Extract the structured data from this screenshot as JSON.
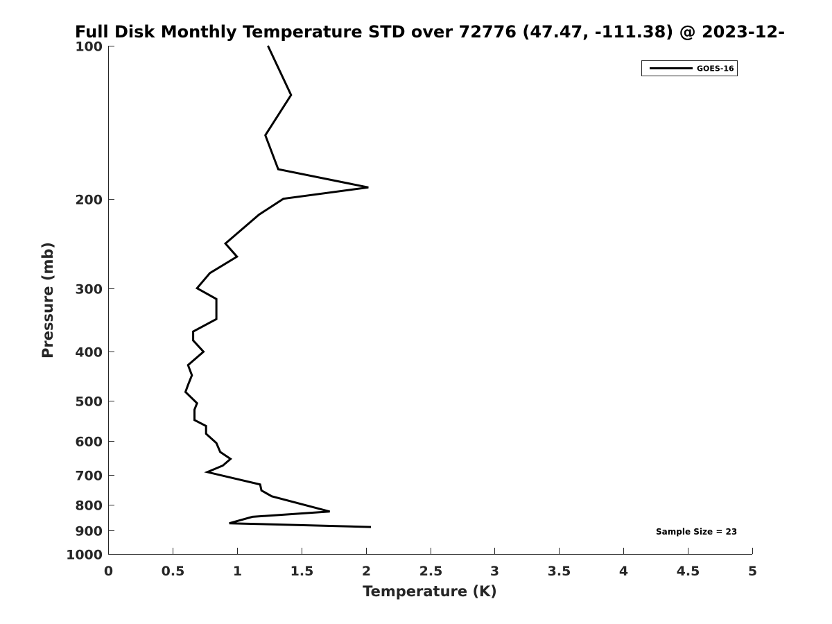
{
  "chart_data": {
    "type": "line",
    "title": "Full Disk Monthly Temperature STD over 72776 (47.47, -111.38) @ 2023-12-",
    "xlabel": "Temperature (K)",
    "ylabel": "Pressure (mb)",
    "xlim": [
      0,
      5
    ],
    "ylim": [
      100,
      1000
    ],
    "y_scale": "log",
    "y_reversed": true,
    "grid": false,
    "x_ticks": [
      0,
      0.5,
      1,
      1.5,
      2,
      2.5,
      3,
      3.5,
      4,
      4.5,
      5
    ],
    "x_tick_labels": [
      "0",
      "0.5",
      "1",
      "1.5",
      "2",
      "2.5",
      "3",
      "3.5",
      "4",
      "4.5",
      "5"
    ],
    "y_ticks": [
      100,
      200,
      300,
      400,
      500,
      600,
      700,
      800,
      900,
      1000
    ],
    "y_tick_labels": [
      "100",
      "200",
      "300",
      "400",
      "500",
      "600",
      "700",
      "800",
      "900",
      "1000"
    ],
    "legend_position": "top-right",
    "annotation": "Sample Size = 23",
    "line_color": "#000000",
    "series": [
      {
        "name": "GOES-16",
        "points": [
          [
            1.24,
            100
          ],
          [
            1.42,
            125
          ],
          [
            1.22,
            150
          ],
          [
            1.32,
            175
          ],
          [
            2.02,
            190
          ],
          [
            1.36,
            200
          ],
          [
            1.17,
            215
          ],
          [
            0.91,
            245
          ],
          [
            1.0,
            260
          ],
          [
            0.79,
            280
          ],
          [
            0.69,
            300
          ],
          [
            0.84,
            315
          ],
          [
            0.84,
            345
          ],
          [
            0.66,
            365
          ],
          [
            0.66,
            380
          ],
          [
            0.74,
            400
          ],
          [
            0.62,
            425
          ],
          [
            0.65,
            445
          ],
          [
            0.62,
            465
          ],
          [
            0.6,
            480
          ],
          [
            0.69,
            505
          ],
          [
            0.67,
            520
          ],
          [
            0.67,
            545
          ],
          [
            0.76,
            560
          ],
          [
            0.76,
            580
          ],
          [
            0.84,
            605
          ],
          [
            0.87,
            630
          ],
          [
            0.95,
            650
          ],
          [
            0.89,
            670
          ],
          [
            0.77,
            690
          ],
          [
            1.18,
            730
          ],
          [
            1.19,
            750
          ],
          [
            1.27,
            770
          ],
          [
            1.72,
            825
          ],
          [
            1.12,
            845
          ],
          [
            0.94,
            870
          ],
          [
            2.04,
            885
          ]
        ]
      }
    ]
  }
}
